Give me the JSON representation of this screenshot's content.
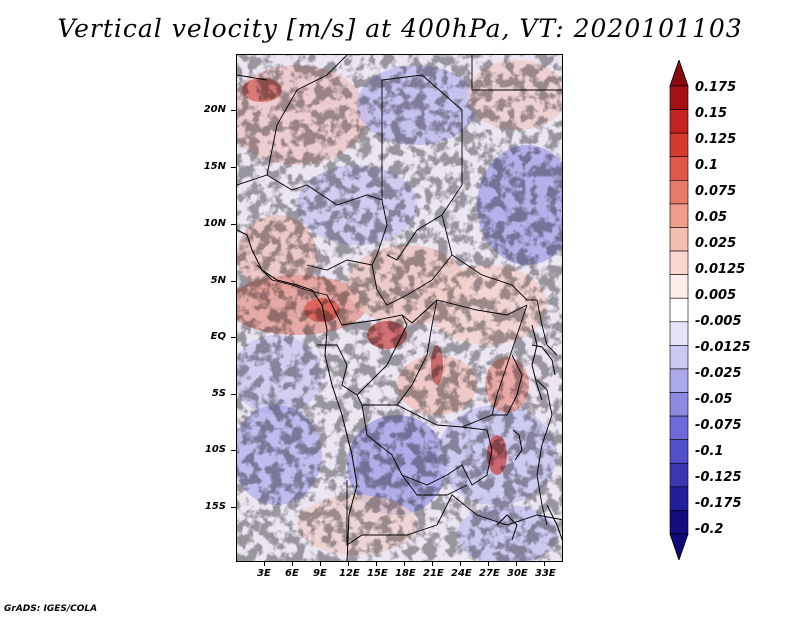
{
  "title": "Vertical velocity [m/s] at 400hPa, VT: 2020101103",
  "credit": "GrADS: IGES/COLA",
  "lat_labels": [
    "20N",
    "15N",
    "10N",
    "5N",
    "EQ",
    "5S",
    "10S",
    "15S"
  ],
  "lon_labels": [
    "3E",
    "6E",
    "9E",
    "12E",
    "15E",
    "18E",
    "21E",
    "24E",
    "27E",
    "30E",
    "33E"
  ],
  "colorbar": {
    "labels": [
      "0.175",
      "0.15",
      "0.125",
      "0.1",
      "0.075",
      "0.05",
      "0.025",
      "0.0125",
      "0.005",
      "-0.005",
      "-0.0125",
      "-0.025",
      "-0.05",
      "-0.075",
      "-0.1",
      "-0.125",
      "-0.175",
      "-0.2"
    ],
    "colors": [
      "#a50f15",
      "#c4231f",
      "#d63a2f",
      "#e0584a",
      "#e87a6a",
      "#ef9c8c",
      "#f5bcb0",
      "#f9d8d0",
      "#fdeeea",
      "#ffffff",
      "#e6e4f7",
      "#cbc8f1",
      "#aca9eb",
      "#8d8ae3",
      "#6e6ad9",
      "#5250c9",
      "#3a36b4",
      "#231f9a",
      "#150c80"
    ],
    "top_color": "#8b0a10",
    "bottom_color": "#0f0878"
  }
}
